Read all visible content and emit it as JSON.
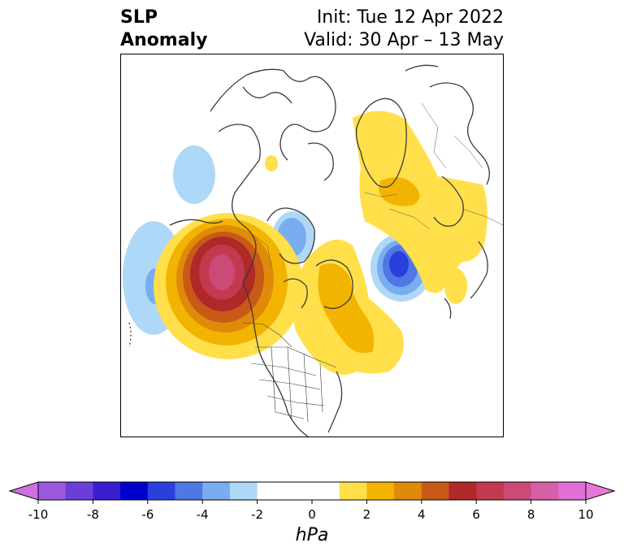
{
  "title": {
    "left_line1": "SLP",
    "left_line2": "Anomaly",
    "right_line1": "Init: Tue 12 Apr 2022",
    "right_line2": "Valid: 30 Apr – 13 May"
  },
  "colorbar": {
    "units": "hPa",
    "ticks": [
      -10,
      -8,
      -6,
      -4,
      -2,
      0,
      2,
      4,
      6,
      8,
      10
    ],
    "tick_labels": [
      "-10",
      "-8",
      "-6",
      "-4",
      "-2",
      "0",
      "2",
      "4",
      "6",
      "8",
      "10"
    ],
    "levels": [
      -10,
      -9,
      -8,
      -7,
      -6,
      -5,
      -4,
      -3,
      -2,
      -1,
      1,
      2,
      3,
      4,
      5,
      6,
      7,
      8,
      9,
      10
    ],
    "colors": [
      "#9b59e0",
      "#6a3fd8",
      "#3a1fd0",
      "#0000cc",
      "#2a40dc",
      "#4f78e6",
      "#78aef0",
      "#aed8f7",
      "#ffffff",
      "#ffffff",
      "#ffe04a",
      "#f2b400",
      "#e08a0a",
      "#c85a18",
      "#b02828",
      "#c23a50",
      "#cc4a78",
      "#d660a8",
      "#e070d8"
    ],
    "under_color": "#d070e0",
    "over_color": "#e878d8",
    "extend": "both"
  },
  "map": {
    "projection": "polar stereographic (North)",
    "field": "sea level pressure anomaly",
    "features": [
      "coastlines",
      "country borders",
      "US state borders"
    ]
  }
}
